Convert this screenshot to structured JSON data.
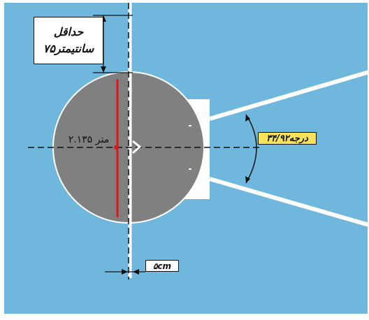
{
  "colors": {
    "background": "#6fb7dc",
    "circle": "#808080",
    "line": "#ffffff",
    "center_line": "#111111",
    "radius": "#e01818",
    "angle_label_bg": "#f7e25a"
  },
  "labels": {
    "min_line1": "حداقل",
    "min_line2": "۷۵سانتیمتر",
    "radius": "۲.۱۳۵ متر",
    "angle": "۳۴/۹۲درجه",
    "line_width": "۵cm"
  }
}
